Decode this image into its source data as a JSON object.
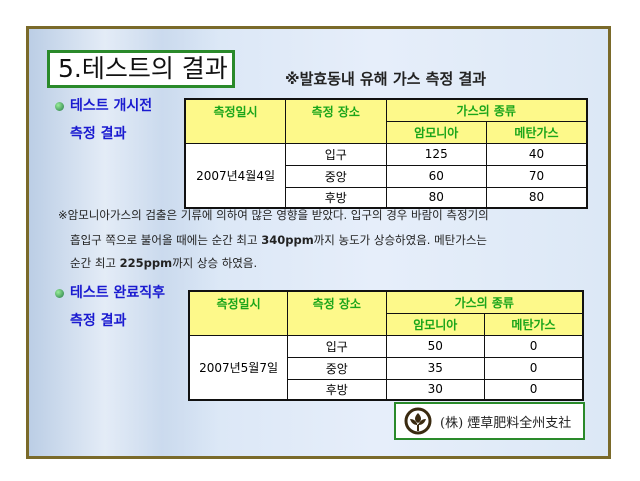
{
  "title": "5.테스트의 결과",
  "subtitle": "※발효동내 유해 가스 측정 결과",
  "section1": {
    "line1": "테스트 개시전",
    "line2": "측정 결과"
  },
  "section2": {
    "line1": "테스트 완료직후",
    "line2": "측정 결과"
  },
  "headers": {
    "date": "측정일시",
    "place": "측정 장소",
    "gas": "가스의 종류",
    "ammonia": "암모니아",
    "methane": "메탄가스"
  },
  "table1": {
    "date": "2007년4월4일",
    "rows": [
      {
        "place": "입구",
        "ammonia": "125",
        "methane": "40"
      },
      {
        "place": "중앙",
        "ammonia": "60",
        "methane": "70"
      },
      {
        "place": "후방",
        "ammonia": "80",
        "methane": "80"
      }
    ]
  },
  "table2": {
    "date": "2007년5월7일",
    "rows": [
      {
        "place": "입구",
        "ammonia": "50",
        "methane": "0"
      },
      {
        "place": "중앙",
        "ammonia": "35",
        "methane": "0"
      },
      {
        "place": "후방",
        "ammonia": "30",
        "methane": "0"
      }
    ]
  },
  "note": {
    "line1": "※암모니아가스의 검출은 기류에 의하여 많은 영향을 받았다. 입구의 경우 바람이 측정기의",
    "line2a": "흡입구 쪽으로 불어올 때에는 순간 최고 ",
    "line2b": "340ppm",
    "line2c": "까지 농도가 상승하였음. 메탄가스는",
    "line3a": "순간 최고 ",
    "line3b": "225ppm",
    "line3c": "까지 상승 하였음."
  },
  "logo": {
    "text": "(株) 煙草肥料全州支社"
  }
}
